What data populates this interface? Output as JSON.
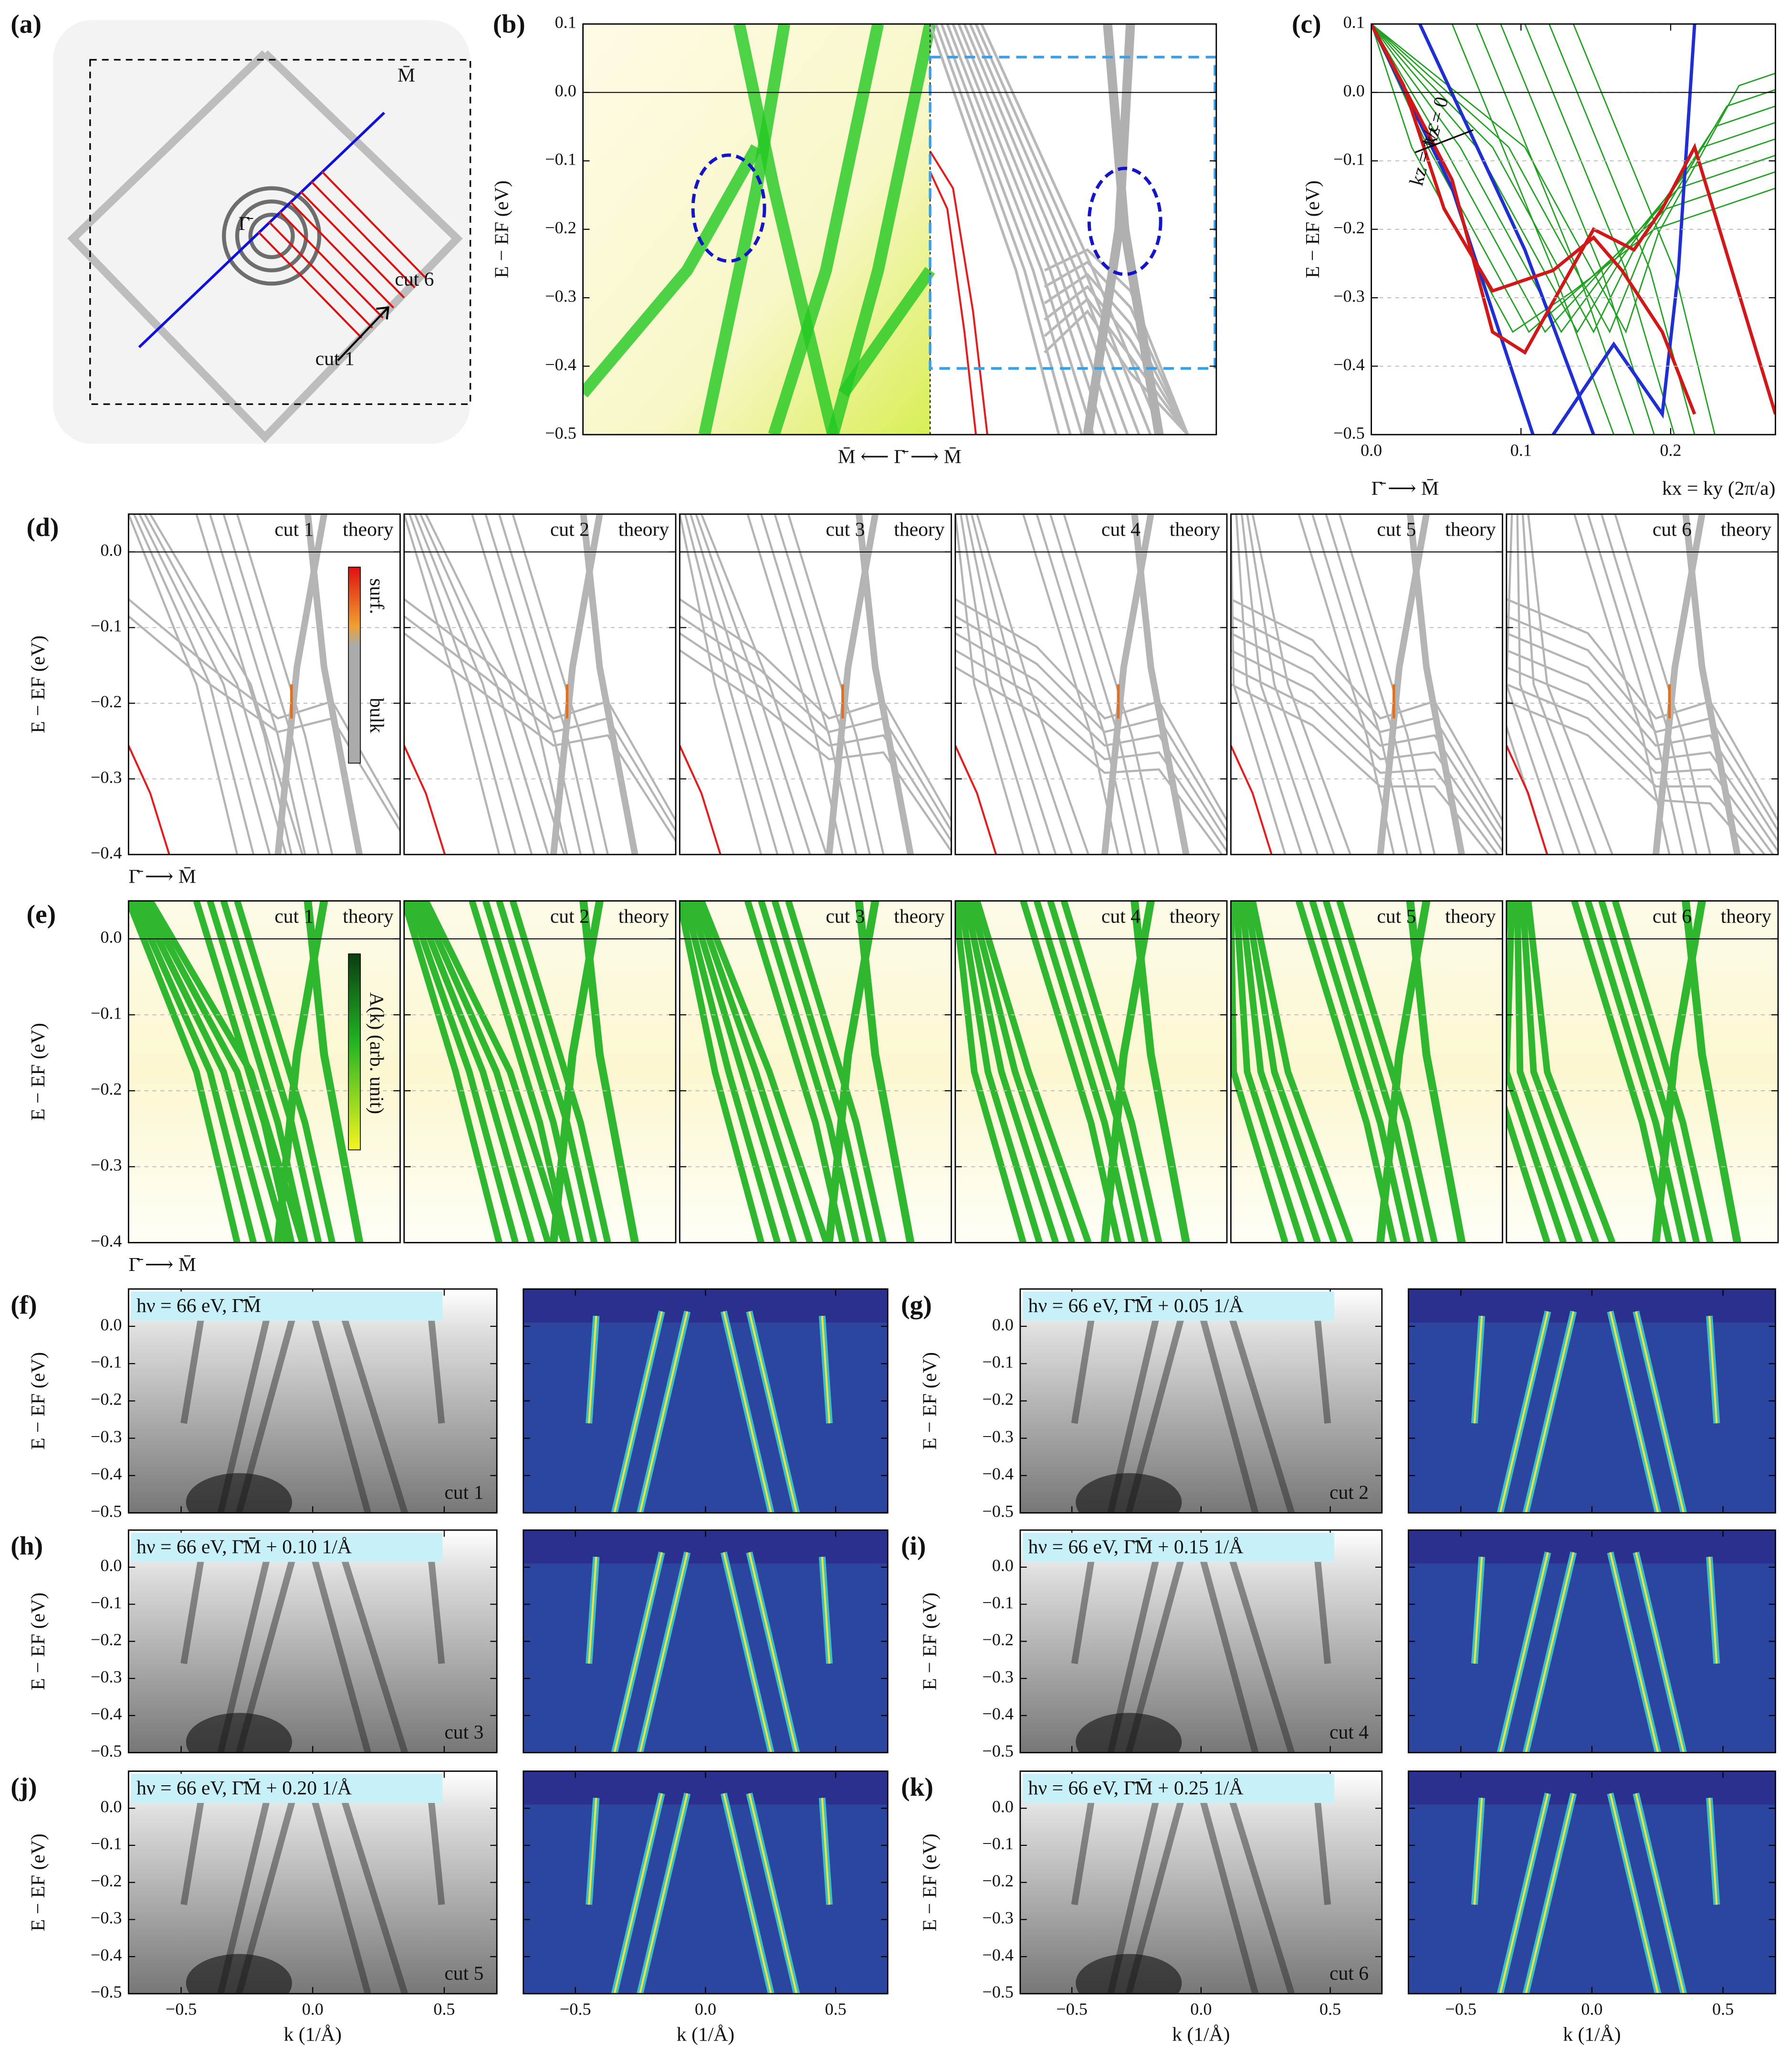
{
  "a": {
    "label": "(a)",
    "m_point": "M̄",
    "gamma_point": "Γ̄",
    "cut_first": "cut 1",
    "cut_last": "cut 6"
  },
  "b": {
    "label": "(b)",
    "ylabel": "E − EF (eV)",
    "xlabel": "M̄ ⟵ Γ̄ ⟶ M̄",
    "ylim": [
      -0.5,
      0.1
    ],
    "yticks": [
      {
        "value": -0.5,
        "label": "−0.5"
      },
      {
        "value": -0.4,
        "label": "−0.4"
      },
      {
        "value": -0.3,
        "label": "−0.3"
      },
      {
        "value": -0.2,
        "label": "−0.2"
      },
      {
        "value": -0.1,
        "label": "−0.1"
      },
      {
        "value": 0,
        "label": "0.0"
      },
      0.1
    ]
  },
  "c": {
    "label": "(c)",
    "ylabel": "E − EF (eV)",
    "ylim": [
      -0.5,
      0.1
    ],
    "yticks": [
      {
        "value": -0.5,
        "label": "−0.5"
      },
      {
        "value": -0.4,
        "label": "−0.4"
      },
      {
        "value": -0.3,
        "label": "−0.3"
      },
      {
        "value": -0.2,
        "label": "−0.2"
      },
      {
        "value": -0.1,
        "label": "−0.1"
      },
      {
        "value": 0,
        "label": "0.0"
      },
      0.1
    ],
    "xlim": [
      0,
      0.27
    ],
    "xticks": [
      {
        "value": 0,
        "label": "0.0"
      },
      0.1,
      0.2
    ],
    "xlabel_path": "Γ̄ ⟶ M̄",
    "xlabel": "kx = ky (2π/a)",
    "kz_zero": "kz = 0",
    "kz_pi": "kz = π/c"
  },
  "d": {
    "label": "(d)",
    "ylabel": "E − EF (eV)",
    "xlabel": "Γ̄ ⟶ M̄",
    "ylim": [
      -0.4,
      0.05
    ],
    "yticks": [
      {
        "value": -0.4,
        "label": "−0.4"
      },
      {
        "value": -0.3,
        "label": "−0.3"
      },
      {
        "value": -0.2,
        "label": "−0.2"
      },
      {
        "value": -0.1,
        "label": "−0.1"
      },
      {
        "value": 0,
        "label": "0.0"
      }
    ],
    "colorbar_top": "surf.",
    "colorbar_bottom": "bulk",
    "panels": [
      {
        "cut": "cut 1",
        "tag": "theory"
      },
      {
        "cut": "cut 2",
        "tag": "theory"
      },
      {
        "cut": "cut 3",
        "tag": "theory"
      },
      {
        "cut": "cut 4",
        "tag": "theory"
      },
      {
        "cut": "cut 5",
        "tag": "theory"
      },
      {
        "cut": "cut 6",
        "tag": "theory"
      }
    ]
  },
  "e": {
    "label": "(e)",
    "ylabel": "E − EF (eV)",
    "xlabel": "Γ̄ ⟶ M̄",
    "ylim": [
      -0.4,
      0.05
    ],
    "yticks": [
      {
        "value": -0.4,
        "label": "−0.4"
      },
      {
        "value": -0.3,
        "label": "−0.3"
      },
      {
        "value": -0.2,
        "label": "−0.2"
      },
      {
        "value": -0.1,
        "label": "−0.1"
      },
      {
        "value": 0,
        "label": "0.0"
      }
    ],
    "colorbar_label": "A(k) (arb. unit)",
    "panels": [
      {
        "cut": "cut 1",
        "tag": "theory"
      },
      {
        "cut": "cut 2",
        "tag": "theory"
      },
      {
        "cut": "cut 3",
        "tag": "theory"
      },
      {
        "cut": "cut 4",
        "tag": "theory"
      },
      {
        "cut": "cut 5",
        "tag": "theory"
      },
      {
        "cut": "cut 6",
        "tag": "theory"
      }
    ]
  },
  "arpes": {
    "ylabel": "E − EF (eV)",
    "xlabel": "k (1/Å)",
    "ylim": [
      -0.5,
      0.1
    ],
    "yticks": [
      {
        "value": -0.5,
        "label": "−0.5"
      },
      {
        "value": -0.4,
        "label": "−0.4"
      },
      {
        "value": -0.3,
        "label": "−0.3"
      },
      {
        "value": -0.2,
        "label": "−0.2"
      },
      {
        "value": -0.1,
        "label": "−0.1"
      },
      {
        "value": 0,
        "label": "0.0"
      }
    ],
    "xlim": [
      -0.7,
      0.7
    ],
    "xticks": [
      {
        "value": -0.5,
        "label": "−0.5"
      },
      {
        "value": 0,
        "label": "0.0"
      },
      0.5
    ],
    "rows": [
      {
        "label": "(f)",
        "header": "hν = 66 eV, Γ̄M̄",
        "cut": "cut 1"
      },
      {
        "label": "(g)",
        "header": "hν = 66 eV, Γ̄M̄ + 0.05 1/Å",
        "cut": "cut 2"
      },
      {
        "label": "(h)",
        "header": "hν = 66 eV, Γ̄M̄ + 0.10 1/Å",
        "cut": "cut 3"
      },
      {
        "label": "(i)",
        "header": "hν = 66 eV, Γ̄M̄ + 0.15 1/Å",
        "cut": "cut 4"
      },
      {
        "label": "(j)",
        "header": "hν = 66 eV, Γ̄M̄ + 0.20 1/Å",
        "cut": "cut 5"
      },
      {
        "label": "(k)",
        "header": "hν = 66 eV, Γ̄M̄ + 0.25 1/Å",
        "cut": "cut 6"
      }
    ]
  }
}
